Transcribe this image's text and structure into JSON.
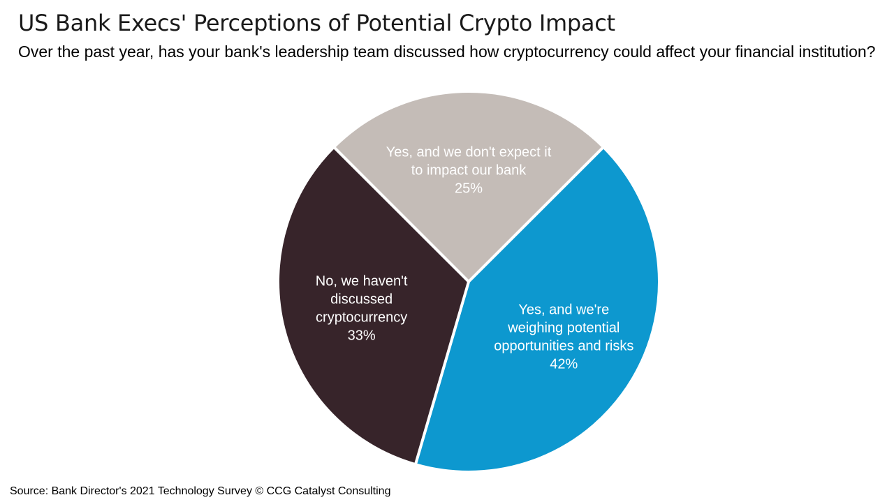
{
  "header": {
    "title": "US Bank Execs' Perceptions of Potential Crypto Impact",
    "subtitle": "Over the past year, has your bank's leadership team discussed how cryptocurrency could affect your financial institution?"
  },
  "footer": {
    "source": "Source: Bank Director's 2021 Technology Survey © CCG Catalyst Consulting"
  },
  "chart_data": {
    "type": "pie",
    "title": "US Bank Execs' Perceptions of Potential Crypto Impact",
    "slices": [
      {
        "label_lines": [
          "Yes, and we don't expect it",
          "to impact our bank"
        ],
        "value": 25,
        "value_label": "25%",
        "color": "#c4bcb7"
      },
      {
        "label_lines": [
          "Yes, and we're",
          "weighing potential",
          "opportunities and risks"
        ],
        "value": 42,
        "value_label": "42%",
        "color": "#0d98cf"
      },
      {
        "label_lines": [
          "No, we haven't",
          "discussed",
          "cryptocurrency"
        ],
        "value": 33,
        "value_label": "33%",
        "color": "#37242a"
      }
    ],
    "start_angle_deg": -45,
    "slice_border_color": "#ffffff"
  }
}
